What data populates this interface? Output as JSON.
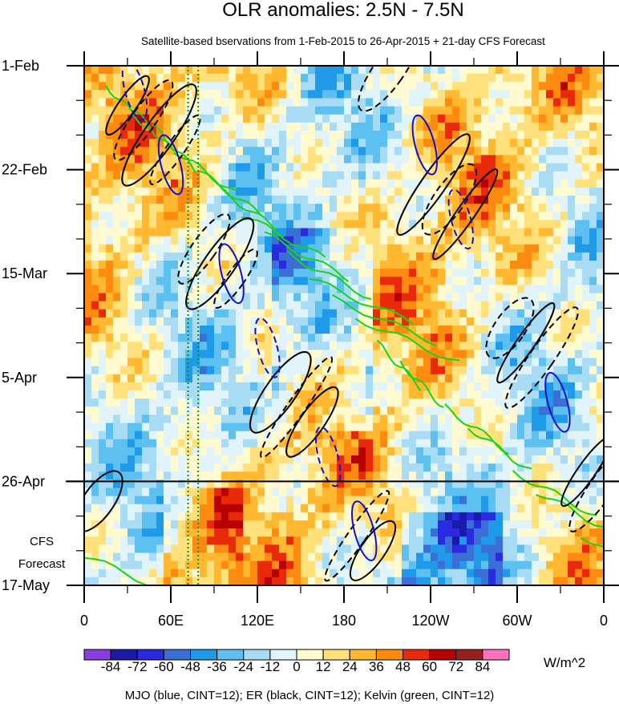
{
  "chart_data": {
    "type": "heatmap",
    "title": "OLR anomalies: 2.5N - 7.5N",
    "subtitle": "Satellite-based bservations from 1-Feb-2015 to 26-Apr-2015 + 21-day CFS Forecast",
    "x_ticks": [
      "0",
      "60E",
      "120E",
      "180",
      "120W",
      "60W",
      "0"
    ],
    "x_tick_values": [
      0,
      60,
      120,
      180,
      240,
      300,
      360
    ],
    "xlim": [
      0,
      360
    ],
    "y_ticks": [
      "1-Feb",
      "22-Feb",
      "15-Mar",
      "5-Apr",
      "26-Apr",
      "17-May"
    ],
    "y_tick_values": [
      0,
      21,
      42,
      63,
      84,
      105
    ],
    "ylim": [
      0,
      105
    ],
    "observation_end_day": 84,
    "forecast_label": [
      "CFS",
      "Forecast"
    ],
    "colorbar": {
      "unit": "W/m^2",
      "labels": [
        "-84",
        "-72",
        "-60",
        "-48",
        "-36",
        "-24",
        "-12",
        "0",
        "12",
        "24",
        "36",
        "48",
        "60",
        "72",
        "84"
      ],
      "colors": [
        "#8a3de0",
        "#1a1aa8",
        "#2a2ae0",
        "#3b6fd8",
        "#1e9ae8",
        "#5cc0f0",
        "#a8dcf4",
        "#e0f4fa",
        "#fffad0",
        "#ffe07a",
        "#ffb830",
        "#ff8a10",
        "#e82a0a",
        "#b80000",
        "#9a2020",
        "#ff70c0"
      ]
    },
    "contour_legend": "MJO (blue, CINT=12); ER (black, CINT=12); Kelvin (green, CINT=12)",
    "contour_series": [
      {
        "name": "MJO",
        "color": "#1010d0"
      },
      {
        "name": "ER",
        "color": "#000000"
      },
      {
        "name": "Kelvin",
        "color": "#18d418"
      }
    ],
    "vertical_reference_lines_lon": [
      72,
      79
    ],
    "grid": false
  }
}
